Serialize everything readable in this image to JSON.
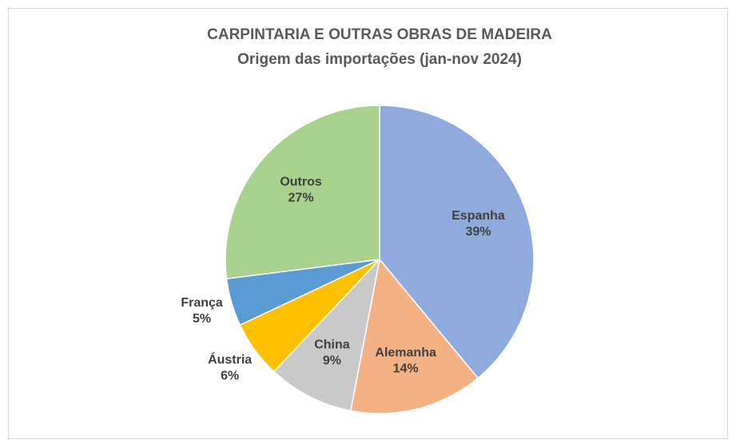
{
  "chart_data": {
    "type": "pie",
    "title": "CARPINTARIA E OUTRAS OBRAS DE MADEIRA",
    "subtitle": "Origem das importações (jan-nov 2024)",
    "categories": [
      "Espanha",
      "Alemanha",
      "China",
      "Áustria",
      "França",
      "Outros"
    ],
    "values": [
      39,
      14,
      9,
      6,
      5,
      27
    ],
    "value_labels": [
      "39%",
      "14%",
      "9%",
      "6%",
      "5%",
      "27%"
    ],
    "colors": [
      "#8faadc",
      "#f4b183",
      "#c9c9c9",
      "#ffc000",
      "#5b9bd5",
      "#a9d18e"
    ]
  }
}
